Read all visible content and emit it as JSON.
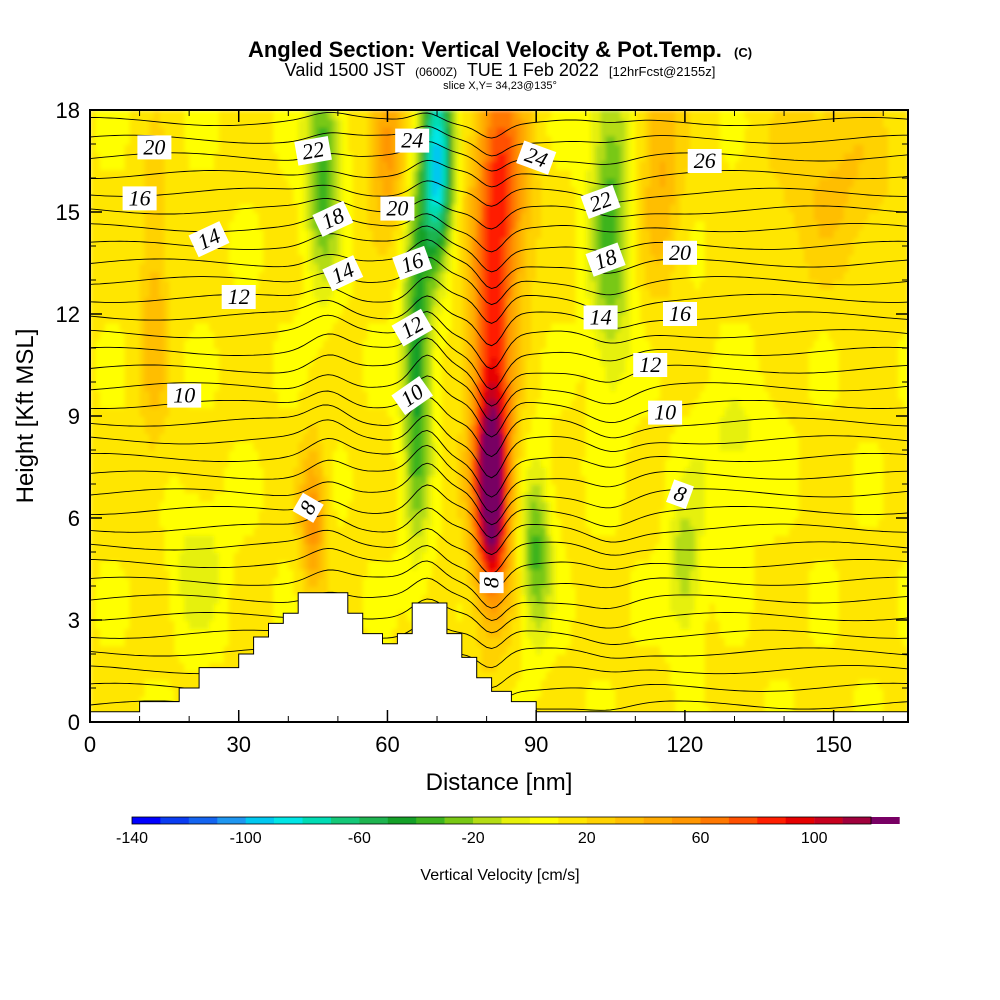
{
  "title": {
    "main": "Angled Section: Vertical Velocity & Pot.Temp.",
    "main_suffix": "(C)",
    "valid_prefix": "Valid 1500 JST",
    "valid_zulu": "(0600Z)",
    "valid_date": "TUE 1 Feb 2022",
    "valid_fcst": "[12hrFcst@2155z]",
    "slice": "slice X,Y= 34,23@135°"
  },
  "chart_data": {
    "type": "heatmap",
    "xlabel": "Distance [nm]",
    "ylabel": "Height [Kft MSL]",
    "xlim": [
      0,
      165
    ],
    "ylim": [
      0,
      18
    ],
    "x_ticks": [
      0,
      30,
      60,
      90,
      120,
      150
    ],
    "x_tick_labels": [
      "0",
      "30",
      "60",
      "90",
      "120",
      "150"
    ],
    "y_ticks": [
      0,
      3,
      6,
      9,
      12,
      15,
      18
    ],
    "y_tick_labels": [
      "0",
      "3",
      "6",
      "9",
      "12",
      "15",
      "18"
    ],
    "colorbar": {
      "label": "Vertical Velocity [cm/s]",
      "min": -140,
      "max": 120,
      "step": 10,
      "tick_values": [
        -140,
        -100,
        -60,
        -20,
        20,
        60,
        100
      ],
      "tick_labels": [
        "-140",
        "-100",
        "-60",
        "-20",
        "20",
        "60",
        "100"
      ],
      "colors": [
        "#0000ff",
        "#0a3cf2",
        "#1464f0",
        "#1e96f0",
        "#00c8f0",
        "#00e6e6",
        "#00dcb4",
        "#14c878",
        "#1eb450",
        "#14a028",
        "#3cb41e",
        "#78c814",
        "#b4dc14",
        "#e6f00a",
        "#ffff00",
        "#ffe600",
        "#ffd200",
        "#ffbe00",
        "#ffaa00",
        "#ff9600",
        "#ff7800",
        "#ff5000",
        "#ff1e00",
        "#e60000",
        "#c8001e",
        "#a0003c",
        "#780064"
      ]
    },
    "velocity_field_cm_s": {
      "background": 12,
      "features": [
        {
          "x": 81,
          "y": 6.8,
          "sx": 2.3,
          "sy": 2.0,
          "peak": 112
        },
        {
          "x": 81,
          "y": 11.5,
          "sx": 3.2,
          "sy": 4.5,
          "peak": 60
        },
        {
          "x": 84,
          "y": 16.0,
          "sx": 3.5,
          "sy": 2.5,
          "peak": 45
        },
        {
          "x": 70,
          "y": 16.5,
          "sx": 2.2,
          "sy": 2.0,
          "peak": -110
        },
        {
          "x": 66,
          "y": 10.5,
          "sx": 2.0,
          "sy": 3.5,
          "peak": -60
        },
        {
          "x": 60,
          "y": 17.0,
          "sx": 2.5,
          "sy": 1.5,
          "peak": 45
        },
        {
          "x": 47,
          "y": 16.5,
          "sx": 2.5,
          "sy": 2.5,
          "peak": -50
        },
        {
          "x": 45,
          "y": 6.0,
          "sx": 1.8,
          "sy": 1.5,
          "peak": 45
        },
        {
          "x": 90,
          "y": 5.0,
          "sx": 2.2,
          "sy": 1.8,
          "peak": -45
        },
        {
          "x": 105,
          "y": 15.0,
          "sx": 3.0,
          "sy": 3.5,
          "peak": -45
        },
        {
          "x": 115,
          "y": 16.5,
          "sx": 3.0,
          "sy": 2.5,
          "peak": 30
        },
        {
          "x": 120,
          "y": 4.5,
          "sx": 2.5,
          "sy": 1.5,
          "peak": -30
        },
        {
          "x": 130,
          "y": 8.0,
          "sx": 6.0,
          "sy": 1.5,
          "peak": -15
        },
        {
          "x": 22,
          "y": 4.5,
          "sx": 4.0,
          "sy": 1.5,
          "peak": -18
        },
        {
          "x": 13,
          "y": 12.0,
          "sx": 2.0,
          "sy": 3.0,
          "peak": 25
        },
        {
          "x": 150,
          "y": 16.0,
          "sx": 8.0,
          "sy": 2.0,
          "peak": 20
        }
      ]
    },
    "terrain_heights_kft": [
      {
        "x": 0,
        "h": 0.3
      },
      {
        "x": 10,
        "h": 0.3
      },
      {
        "x": 10,
        "h": 0.6
      },
      {
        "x": 18,
        "h": 0.6
      },
      {
        "x": 18,
        "h": 1.0
      },
      {
        "x": 22,
        "h": 1.0
      },
      {
        "x": 22,
        "h": 1.6
      },
      {
        "x": 30,
        "h": 1.6
      },
      {
        "x": 30,
        "h": 2.0
      },
      {
        "x": 33,
        "h": 2.0
      },
      {
        "x": 33,
        "h": 2.5
      },
      {
        "x": 36,
        "h": 2.5
      },
      {
        "x": 36,
        "h": 2.9
      },
      {
        "x": 39,
        "h": 2.9
      },
      {
        "x": 39,
        "h": 3.2
      },
      {
        "x": 42,
        "h": 3.2
      },
      {
        "x": 42,
        "h": 3.8
      },
      {
        "x": 52,
        "h": 3.8
      },
      {
        "x": 52,
        "h": 3.2
      },
      {
        "x": 55,
        "h": 3.2
      },
      {
        "x": 55,
        "h": 2.6
      },
      {
        "x": 59,
        "h": 2.6
      },
      {
        "x": 59,
        "h": 2.3
      },
      {
        "x": 62,
        "h": 2.3
      },
      {
        "x": 62,
        "h": 2.6
      },
      {
        "x": 65,
        "h": 2.6
      },
      {
        "x": 65,
        "h": 3.5
      },
      {
        "x": 72,
        "h": 3.5
      },
      {
        "x": 72,
        "h": 2.6
      },
      {
        "x": 75,
        "h": 2.6
      },
      {
        "x": 75,
        "h": 1.9
      },
      {
        "x": 78,
        "h": 1.9
      },
      {
        "x": 78,
        "h": 1.3
      },
      {
        "x": 81,
        "h": 1.3
      },
      {
        "x": 81,
        "h": 0.9
      },
      {
        "x": 85,
        "h": 0.9
      },
      {
        "x": 85,
        "h": 0.6
      },
      {
        "x": 90,
        "h": 0.6
      },
      {
        "x": 90,
        "h": 0.3
      },
      {
        "x": 165,
        "h": 0.3
      }
    ],
    "isotherm_labels": [
      {
        "text": "20",
        "x": 13,
        "y": 16.9,
        "angle": 0
      },
      {
        "text": "16",
        "x": 10,
        "y": 15.4,
        "angle": 0
      },
      {
        "text": "14",
        "x": 24,
        "y": 14.2,
        "angle": 25
      },
      {
        "text": "12",
        "x": 30,
        "y": 12.5,
        "angle": 0
      },
      {
        "text": "10",
        "x": 19,
        "y": 9.6,
        "angle": 0
      },
      {
        "text": "8",
        "x": 44,
        "y": 6.3,
        "angle": 60
      },
      {
        "text": "22",
        "x": 45,
        "y": 16.8,
        "angle": 10
      },
      {
        "text": "18",
        "x": 49,
        "y": 14.8,
        "angle": 25
      },
      {
        "text": "14",
        "x": 51,
        "y": 13.2,
        "angle": 25
      },
      {
        "text": "24",
        "x": 65,
        "y": 17.1,
        "angle": 0
      },
      {
        "text": "20",
        "x": 62,
        "y": 15.1,
        "angle": 0
      },
      {
        "text": "16",
        "x": 65,
        "y": 13.5,
        "angle": 20
      },
      {
        "text": "12",
        "x": 65,
        "y": 11.6,
        "angle": 30
      },
      {
        "text": "10",
        "x": 65,
        "y": 9.6,
        "angle": 35
      },
      {
        "text": "8",
        "x": 81,
        "y": 4.1,
        "angle": 90
      },
      {
        "text": "24",
        "x": 90,
        "y": 16.6,
        "angle": -20
      },
      {
        "text": "22",
        "x": 103,
        "y": 15.3,
        "angle": 20
      },
      {
        "text": "18",
        "x": 104,
        "y": 13.6,
        "angle": 20
      },
      {
        "text": "14",
        "x": 103,
        "y": 11.9,
        "angle": 0
      },
      {
        "text": "20",
        "x": 119,
        "y": 13.8,
        "angle": 0
      },
      {
        "text": "16",
        "x": 119,
        "y": 12.0,
        "angle": 0
      },
      {
        "text": "12",
        "x": 113,
        "y": 10.5,
        "angle": 0
      },
      {
        "text": "10",
        "x": 116,
        "y": 9.1,
        "angle": 0
      },
      {
        "text": "8",
        "x": 119,
        "y": 6.7,
        "angle": -20
      },
      {
        "text": "26",
        "x": 124,
        "y": 16.5,
        "angle": 0
      }
    ]
  }
}
